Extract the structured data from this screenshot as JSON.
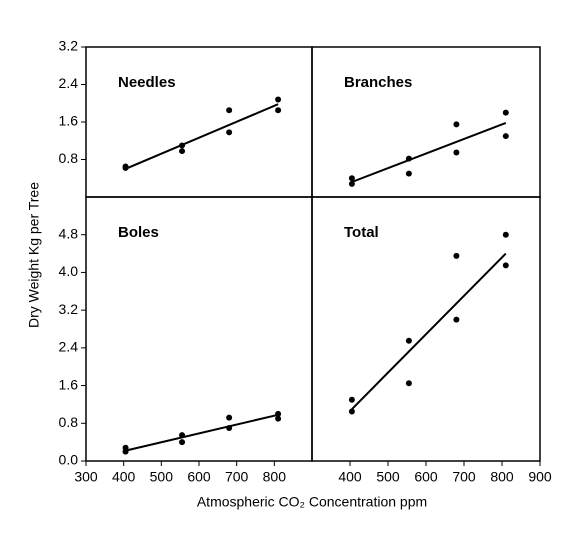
{
  "x_label": "Atmospheric CO₂ Concentration  ppm",
  "y_label": "Dry Weight  Kg per Tree",
  "chart_data": [
    {
      "type": "scatter",
      "title": "Needles",
      "x": [
        405,
        405,
        555,
        555,
        680,
        680,
        810,
        810
      ],
      "values": [
        0.65,
        0.62,
        1.1,
        0.98,
        1.85,
        1.38,
        2.08,
        1.85
      ],
      "trend": {
        "x": [
          405,
          810
        ],
        "values": [
          0.6,
          1.98
        ]
      },
      "xlim": [
        300,
        900
      ],
      "ylim": [
        0,
        3.2
      ],
      "yticks": [
        0.8,
        1.6,
        2.4,
        3.2
      ]
    },
    {
      "type": "scatter",
      "title": "Branches",
      "x": [
        405,
        405,
        555,
        555,
        680,
        680,
        810,
        810
      ],
      "values": [
        0.4,
        0.28,
        0.82,
        0.5,
        1.55,
        0.95,
        1.8,
        1.3
      ],
      "trend": {
        "x": [
          405,
          810
        ],
        "values": [
          0.32,
          1.58
        ]
      },
      "xlim": [
        300,
        900
      ],
      "ylim": [
        0,
        3.2
      ]
    },
    {
      "type": "scatter",
      "title": "Boles",
      "x": [
        405,
        405,
        555,
        555,
        680,
        680,
        810,
        810
      ],
      "values": [
        0.28,
        0.2,
        0.55,
        0.4,
        0.92,
        0.7,
        1.0,
        0.9
      ],
      "trend": {
        "x": [
          405,
          810
        ],
        "values": [
          0.22,
          0.98
        ]
      },
      "xlim": [
        300,
        900
      ],
      "ylim": [
        0,
        5.6
      ],
      "xticks": [
        300,
        400,
        500,
        600,
        700,
        800
      ],
      "yticks": [
        {
          "value": 0,
          "label": "0.0"
        },
        0.8,
        1.6,
        2.4,
        3.2,
        {
          "value": 4,
          "label": "4.0"
        },
        4.8
      ]
    },
    {
      "type": "scatter",
      "title": "Total",
      "x": [
        405,
        405,
        555,
        555,
        680,
        680,
        810,
        810
      ],
      "values": [
        1.3,
        1.05,
        2.55,
        1.65,
        4.35,
        3.0,
        4.8,
        4.15
      ],
      "trend": {
        "x": [
          405,
          810
        ],
        "values": [
          1.1,
          4.4
        ]
      },
      "xlim": [
        300,
        900
      ],
      "ylim": [
        0,
        5.6
      ],
      "xticks": [
        400,
        500,
        600,
        700,
        800,
        900
      ]
    }
  ]
}
